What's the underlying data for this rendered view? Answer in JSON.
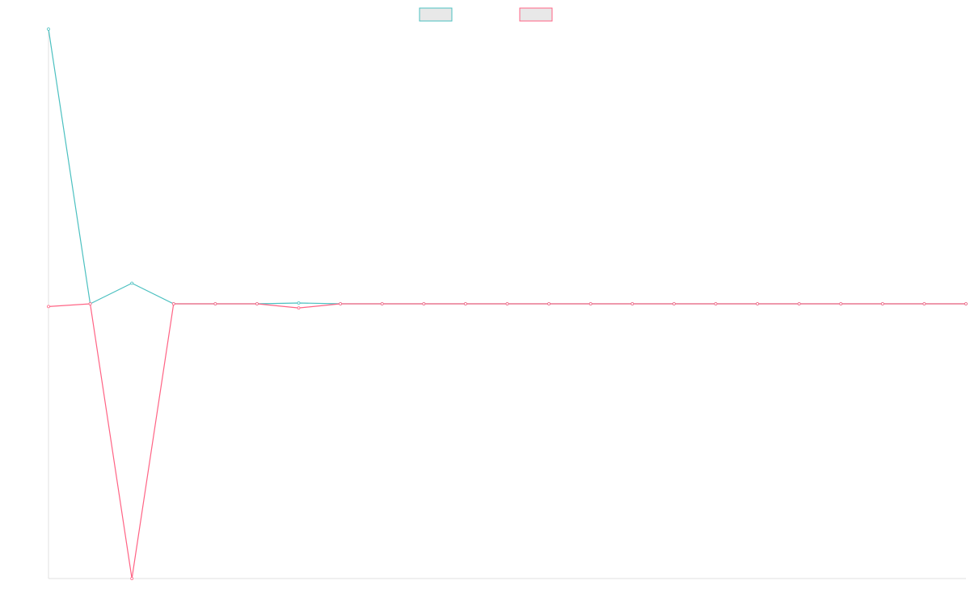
{
  "chart_data": {
    "type": "line",
    "title": "",
    "xlabel": "",
    "ylabel": "",
    "grid": false,
    "legend_position": "top-center",
    "ylim": [
      -100,
      100
    ],
    "x": [
      0,
      1,
      2,
      3,
      4,
      5,
      6,
      7,
      8,
      9,
      10,
      11,
      12,
      13,
      14,
      15,
      16,
      17,
      18,
      19,
      20,
      21,
      22
    ],
    "series": [
      {
        "color": "#4bc0c0",
        "fill": "#e8e8e8",
        "values": [
          100,
          0,
          7.5,
          0,
          0,
          0,
          0.3,
          0,
          0,
          0,
          0,
          0,
          0,
          0,
          0,
          0,
          0,
          0,
          0,
          0,
          0,
          0,
          0
        ]
      },
      {
        "color": "#ff6384",
        "fill": "#e8e8e8",
        "values": [
          -1,
          0,
          -100,
          0,
          0,
          0,
          -1.5,
          0,
          0,
          0,
          0,
          0,
          0,
          0,
          0,
          0,
          0,
          0,
          0,
          0,
          0,
          0,
          0
        ]
      }
    ]
  }
}
